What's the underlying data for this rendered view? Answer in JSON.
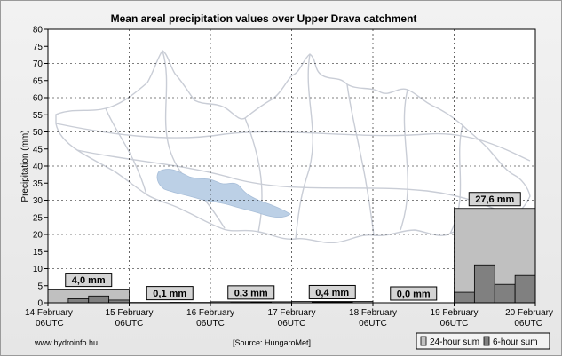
{
  "chart_data": {
    "type": "bar",
    "title": "Mean areal precipitation values over Upper Drava catchment",
    "xlabel": "",
    "ylabel": "Precipitation (mm)",
    "ylim": [
      0,
      80
    ],
    "yticks": [
      0,
      5,
      10,
      15,
      20,
      25,
      30,
      35,
      40,
      45,
      50,
      55,
      60,
      65,
      70,
      75,
      80
    ],
    "grid": true,
    "x_ticks": [
      {
        "line1": "14 February",
        "line2": "06UTC"
      },
      {
        "line1": "15 February",
        "line2": "06UTC"
      },
      {
        "line1": "16 February",
        "line2": "06UTC"
      },
      {
        "line1": "17 February",
        "line2": "06UTC"
      },
      {
        "line1": "18 February",
        "line2": "06UTC"
      },
      {
        "line1": "19 February",
        "line2": "06UTC"
      },
      {
        "line1": "20 February",
        "line2": "06UTC"
      }
    ],
    "series": [
      {
        "name": "24-hour sum",
        "color": "#c0c0c0",
        "values": [
          4.0,
          0.1,
          0.3,
          0.4,
          0.0,
          27.6
        ],
        "labels": [
          "4,0 mm",
          "0,1 mm",
          "0,3 mm",
          "0,4 mm",
          "0,0 mm",
          "27,6 mm"
        ]
      },
      {
        "name": "6-hour sum",
        "color": "#808080",
        "values": [
          0.0,
          1.2,
          2.0,
          0.8,
          0.0,
          0.0,
          0.1,
          0.0,
          0.0,
          0.1,
          0.2,
          0.0,
          0.0,
          0.2,
          0.2,
          0.0,
          0.0,
          0.0,
          0.0,
          0.0,
          3.1,
          11.1,
          5.4,
          8.0
        ]
      }
    ],
    "legend_position": "bottom-right"
  },
  "footer": {
    "left": "www.hydroinfo.hu",
    "center": "[Source: HungaroMet]"
  },
  "colors": {
    "background": "#ebebeb",
    "plot_background": "#ffffff",
    "map_outline": "#c9cdd6",
    "lake_fill": "#bcd0e6"
  }
}
